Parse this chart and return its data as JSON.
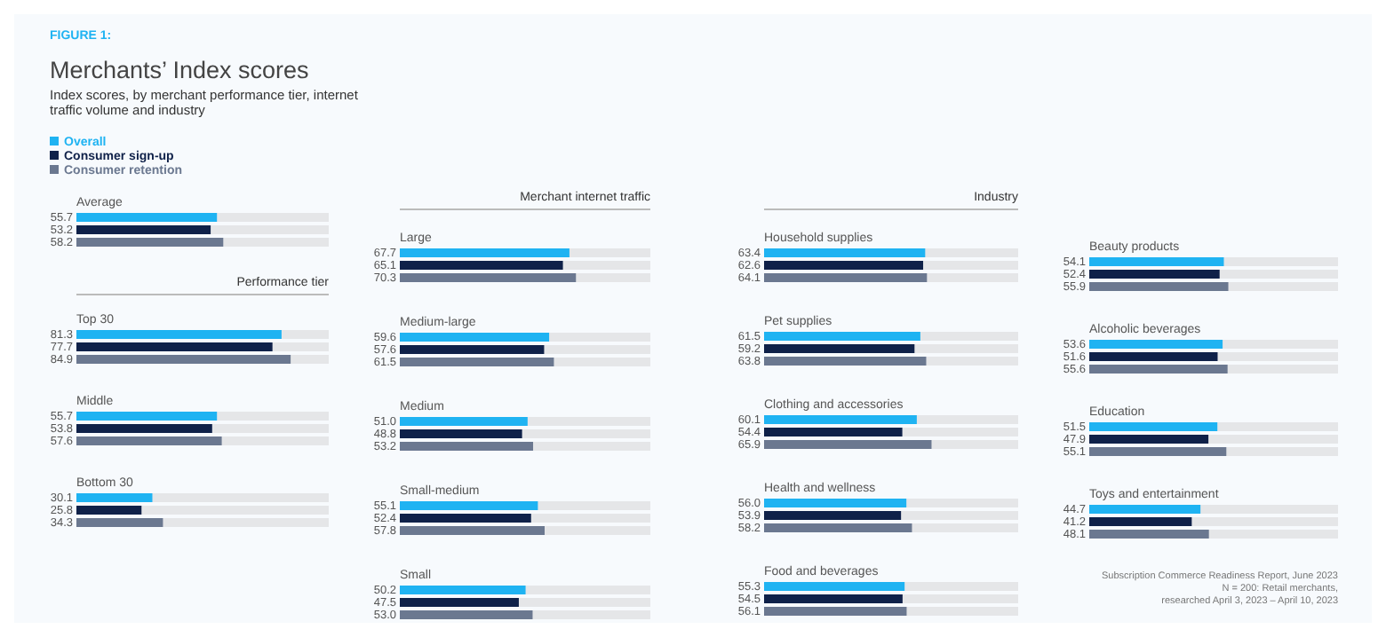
{
  "chart_data": [
    {
      "type": "bar",
      "orientation": "horizontal",
      "title": "Merchants’ Index scores",
      "subtitle": "Index scores, by merchant performance tier, internet traffic volume and industry",
      "annotations": [
        "FIGURE 1:"
      ],
      "legend": "top left",
      "categories": [
        "Average"
      ],
      "xlim": [
        0,
        100
      ],
      "series": [
        {
          "name": "Overall",
          "color": "#1fb3f2",
          "values": [
            55.7
          ],
          "value_labels": [
            "55.7"
          ]
        },
        {
          "name": "Consumer sign-up",
          "color": "#0f2149",
          "values": [
            53.2
          ],
          "value_labels": [
            "53.2"
          ]
        },
        {
          "name": "Consumer retention",
          "color": "#6b7890",
          "values": [
            58.2
          ],
          "value_labels": [
            "58.2"
          ]
        }
      ]
    },
    {
      "type": "bar",
      "orientation": "horizontal",
      "title": "Performance tier",
      "categories": [
        "Top 30",
        "Middle",
        "Bottom 30"
      ],
      "xlim": [
        0,
        100
      ],
      "series": [
        {
          "color": "#1fb3f2",
          "values": [
            81.3,
            55.7,
            30.1
          ],
          "value_labels": [
            "81.3",
            "55.7",
            "30.1"
          ]
        },
        {
          "color": "#0f2149",
          "values": [
            77.7,
            53.8,
            25.8
          ],
          "value_labels": [
            "77.7",
            "53.8",
            "25.8"
          ]
        },
        {
          "color": "#6b7890",
          "values": [
            84.9,
            57.6,
            34.3
          ],
          "value_labels": [
            "84.9",
            "57.6",
            "34.3"
          ]
        }
      ]
    },
    {
      "type": "bar",
      "orientation": "horizontal",
      "title": "Merchant internet traffic",
      "categories": [
        "Large",
        "Medium-large",
        "Medium",
        "Small-medium",
        "Small"
      ],
      "xlim": [
        0,
        100
      ],
      "series": [
        {
          "color": "#1fb3f2",
          "values": [
            67.7,
            59.6,
            51.0,
            55.1,
            50.2
          ],
          "value_labels": [
            "67.7",
            "59.6",
            "51.0",
            "55.1",
            "50.2"
          ]
        },
        {
          "color": "#0f2149",
          "values": [
            65.1,
            57.6,
            48.8,
            52.4,
            47.5
          ],
          "value_labels": [
            "65.1",
            "57.6",
            "48.8",
            "52.4",
            "47.5"
          ]
        },
        {
          "color": "#6b7890",
          "values": [
            70.3,
            61.5,
            53.2,
            57.8,
            53.0
          ],
          "value_labels": [
            "70.3",
            "61.5",
            "53.2",
            "57.8",
            "53.0"
          ]
        }
      ]
    },
    {
      "type": "bar",
      "orientation": "horizontal",
      "title": "Industry",
      "categories": [
        "Household supplies",
        "Pet supplies",
        "Clothing and accessories",
        "Health and wellness",
        "Food and beverages"
      ],
      "xlim": [
        0,
        100
      ],
      "series": [
        {
          "color": "#1fb3f2",
          "values": [
            63.4,
            61.5,
            60.1,
            56.0,
            55.3
          ],
          "value_labels": [
            "63.4",
            "61.5",
            "60.1",
            "56.0",
            "55.3"
          ]
        },
        {
          "color": "#0f2149",
          "values": [
            62.6,
            59.2,
            54.4,
            53.9,
            54.5
          ],
          "value_labels": [
            "62.6",
            "59.2",
            "54.4",
            "53.9",
            "54.5"
          ]
        },
        {
          "color": "#6b7890",
          "values": [
            64.1,
            63.8,
            65.9,
            58.2,
            56.1
          ],
          "value_labels": [
            "64.1",
            "63.8",
            "65.9",
            "58.2",
            "56.1"
          ]
        }
      ]
    },
    {
      "type": "bar",
      "orientation": "horizontal",
      "categories": [
        "Beauty products",
        "Alcoholic beverages",
        "Education",
        "Toys and entertainment"
      ],
      "xlim": [
        0,
        100
      ],
      "annotations": [
        "Subscription Commerce Readiness Report, June 2023",
        "N = 200: Retail merchants,",
        "researched April 3, 2023 – April 10, 2023"
      ],
      "series": [
        {
          "color": "#1fb3f2",
          "values": [
            54.1,
            53.6,
            51.5,
            44.7
          ],
          "value_labels": [
            "54.1",
            "53.6",
            "51.5",
            "44.7"
          ]
        },
        {
          "color": "#0f2149",
          "values": [
            52.4,
            51.6,
            47.9,
            41.2
          ],
          "value_labels": [
            "52.4",
            "51.6",
            "47.9",
            "41.2"
          ]
        },
        {
          "color": "#6b7890",
          "values": [
            55.9,
            55.6,
            55.1,
            48.1
          ],
          "value_labels": [
            "55.9",
            "55.6",
            "55.1",
            "48.1"
          ]
        }
      ]
    }
  ]
}
